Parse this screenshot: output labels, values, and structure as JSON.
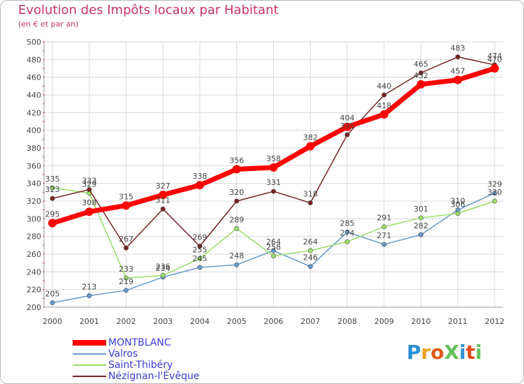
{
  "page": {
    "title": "Evolution des Impôts locaux par Habitant",
    "subtitle": "(en € et par an)",
    "brand": "ProXiti"
  },
  "chart_data": {
    "type": "line",
    "x": [
      2000,
      2001,
      2002,
      2003,
      2004,
      2005,
      2006,
      2007,
      2008,
      2009,
      2010,
      2011,
      2012
    ],
    "ylim": [
      200,
      500
    ],
    "y_ticks": [
      200,
      220,
      240,
      260,
      280,
      300,
      320,
      340,
      360,
      380,
      400,
      420,
      440,
      460,
      480,
      500
    ],
    "grid": true,
    "legend": "bottom-left",
    "series": [
      {
        "name": "MONTBLANC",
        "color": "#ff0000",
        "values": [
          295,
          308,
          315,
          327,
          338,
          356,
          358,
          382,
          404,
          418,
          452,
          457,
          470
        ]
      },
      {
        "name": "Valros",
        "color": "#6699cc",
        "values": [
          205,
          213,
          219,
          234,
          245,
          248,
          264,
          246,
          285,
          271,
          282,
          310,
          329
        ]
      },
      {
        "name": "Saint-Thibéry",
        "color": "#99dd66",
        "values": [
          335,
          329,
          233,
          236,
          255,
          289,
          258,
          264,
          274,
          291,
          301,
          306,
          320
        ]
      },
      {
        "name": "Nézignan-l'Évêque",
        "color": "#772222",
        "values": [
          323,
          333,
          267,
          311,
          269,
          320,
          331,
          318,
          395,
          440,
          465,
          483,
          474
        ]
      }
    ]
  }
}
